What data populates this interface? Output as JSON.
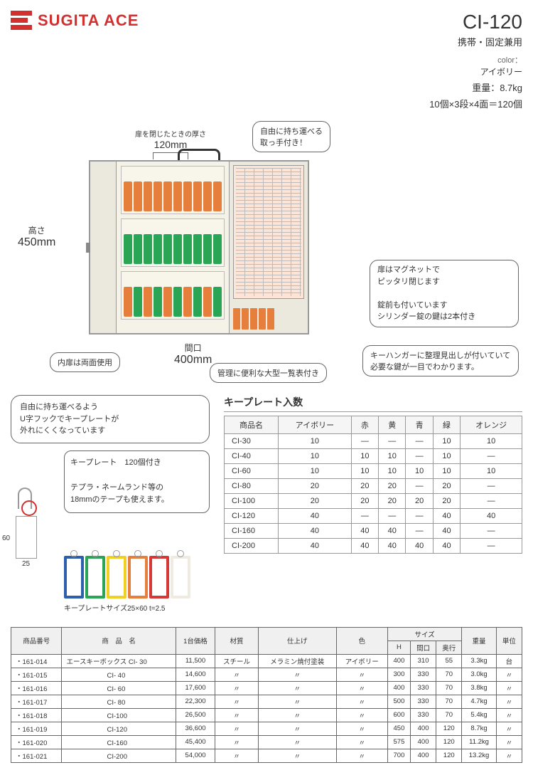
{
  "logo": "SUGITA ACE",
  "product": {
    "name": "CI-120",
    "subtitle": "携帯・固定兼用",
    "colorLabel": "color：",
    "colorValue": "アイボリー",
    "weight": "重量：8.7kg",
    "capacity": "10個×3段×4面＝120個"
  },
  "dims": {
    "thicknessLabel": "扉を閉じたときの厚さ",
    "thicknessVal": "120mm",
    "heightLabel": "高さ",
    "heightVal": "450mm",
    "widthLabel": "間口",
    "widthVal": "400mm"
  },
  "callouts": {
    "c1": "自由に持ち運べる\n取っ手付き！",
    "c2": "内扉は両面使用",
    "c3": "管理に便利な大型一覧表付き",
    "c4": "扉はマグネットで\nピッタリ閉じます\n\n錠前も付いています\nシリンダー錠の鍵は2本付き",
    "c5": "キーハンガーに整理見出しが付いていて必要な鍵が一目でわかります。"
  },
  "keyplate": {
    "hook": "自由に持ち運べるよう\nU字フックでキープレートが\n外れにくくなっています",
    "info": "キープレート　120個付き\n\nテプラ・ネームランド等の\n18mmのテープも使えます。",
    "size": "キープレートサイズ25×60 t=2.5",
    "tagColors": [
      "#2e5fad",
      "#2aa555",
      "#f0d020",
      "#e67e3c",
      "#d63838",
      "#f0ebe0"
    ]
  },
  "keyColors": {
    "row1": [
      "#e67e3c",
      "#e67e3c",
      "#e67e3c",
      "#e67e3c",
      "#e67e3c",
      "#e67e3c",
      "#e67e3c",
      "#e67e3c",
      "#e67e3c",
      "#e67e3c"
    ],
    "row2": [
      "#2aa555",
      "#2aa555",
      "#2aa555",
      "#2aa555",
      "#2aa555",
      "#2aa555",
      "#2aa555",
      "#2aa555",
      "#2aa555",
      "#2aa555"
    ],
    "row3": [
      "#e67e3c",
      "#2aa555",
      "#e67e3c",
      "#2aa555",
      "#e67e3c",
      "#2aa555",
      "#e67e3c",
      "#2aa555",
      "#e67e3c",
      "#2aa555"
    ]
  },
  "kpTable": {
    "title": "キープレート入数",
    "headers": [
      "商品名",
      "アイボリー",
      "赤",
      "黄",
      "青",
      "緑",
      "オレンジ"
    ],
    "rows": [
      [
        "CI-30",
        "10",
        "—",
        "—",
        "—",
        "10",
        "10"
      ],
      [
        "CI-40",
        "10",
        "10",
        "10",
        "—",
        "10",
        "—"
      ],
      [
        "CI-60",
        "10",
        "10",
        "10",
        "10",
        "10",
        "10"
      ],
      [
        "CI-80",
        "20",
        "20",
        "20",
        "—",
        "20",
        "—"
      ],
      [
        "CI-100",
        "20",
        "20",
        "20",
        "20",
        "20",
        "—"
      ],
      [
        "CI-120",
        "40",
        "—",
        "—",
        "—",
        "40",
        "40"
      ],
      [
        "CI-160",
        "40",
        "40",
        "40",
        "—",
        "40",
        "—"
      ],
      [
        "CI-200",
        "40",
        "40",
        "40",
        "40",
        "40",
        "—"
      ]
    ]
  },
  "btTable": {
    "headers1": [
      "商品番号",
      "商　品　名",
      "1台価格",
      "材質",
      "仕上げ",
      "色",
      "サイズ",
      "重量",
      "単位"
    ],
    "headers2": [
      "H",
      "間口",
      "奥行"
    ],
    "rows": [
      [
        "・161-014",
        "エースキーボックス CI- 30",
        "11,500",
        "スチール",
        "メラミン焼付塗装",
        "アイボリー",
        "400",
        "310",
        "55",
        "3.3kg",
        "台"
      ],
      [
        "・161-015",
        "　　　　　　CI- 40",
        "14,600",
        "〃",
        "〃",
        "〃",
        "300",
        "330",
        "70",
        "3.0kg",
        "〃"
      ],
      [
        "・161-016",
        "　　　　　　CI- 60",
        "17,600",
        "〃",
        "〃",
        "〃",
        "400",
        "330",
        "70",
        "3.8kg",
        "〃"
      ],
      [
        "・161-017",
        "　　　　　　CI- 80",
        "22,300",
        "〃",
        "〃",
        "〃",
        "500",
        "330",
        "70",
        "4.7kg",
        "〃"
      ],
      [
        "・161-018",
        "　　　　　　CI-100",
        "26,500",
        "〃",
        "〃",
        "〃",
        "600",
        "330",
        "70",
        "5.4kg",
        "〃"
      ],
      [
        "・161-019",
        "　　　　　　CI-120",
        "36,600",
        "〃",
        "〃",
        "〃",
        "450",
        "400",
        "120",
        "8.7kg",
        "〃"
      ],
      [
        "・161-020",
        "　　　　　　CI-160",
        "45,400",
        "〃",
        "〃",
        "〃",
        "575",
        "400",
        "120",
        "11.2kg",
        "〃"
      ],
      [
        "・161-021",
        "　　　　　　CI-200",
        "54,000",
        "〃",
        "〃",
        "〃",
        "700",
        "400",
        "120",
        "13.2kg",
        "〃"
      ]
    ]
  }
}
